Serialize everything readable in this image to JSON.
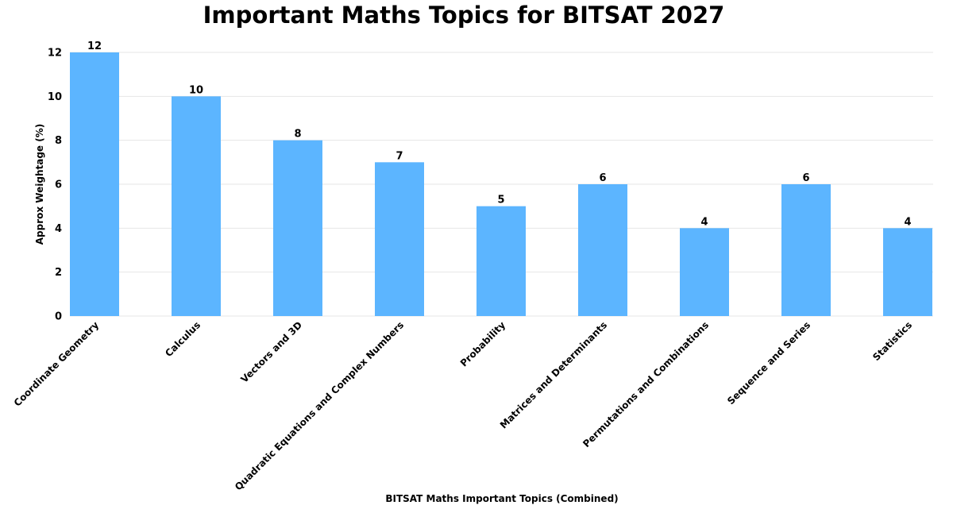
{
  "chart_data": {
    "type": "bar",
    "title": "Important Maths Topics for BITSAT 2027",
    "xlabel": "BITSAT Maths Important Topics (Combined)",
    "ylabel": "Approx Weightage (%)",
    "categories": [
      "Coordinate Geometry",
      "Calculus",
      "Vectors and 3D",
      "Quadratic Equations and Complex Numbers",
      "Probability",
      "Matrices and Determinants",
      "Permutations and Combinations",
      "Sequence and Series",
      "Statistics"
    ],
    "values": [
      12,
      10,
      8,
      7,
      5,
      6,
      4,
      6,
      4
    ],
    "ylim": [
      0,
      12
    ],
    "yticks": [
      0,
      2,
      4,
      6,
      8,
      10,
      12
    ],
    "grid": true,
    "bar_color": "#5cb5ff",
    "grid_color": "#e6e6e6"
  }
}
